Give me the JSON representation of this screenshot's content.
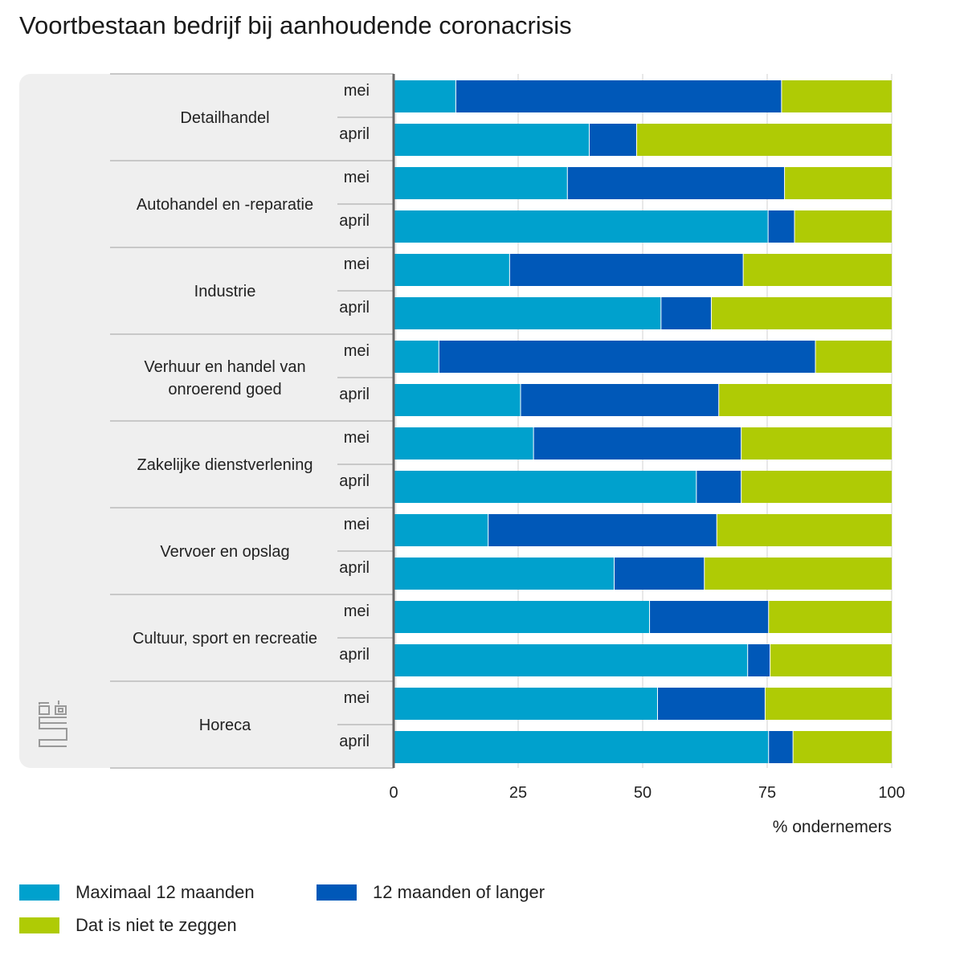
{
  "chart_data": {
    "type": "bar",
    "orientation": "horizontal",
    "stacked": true,
    "title": "Voortbestaan bedrijf bij aanhoudende coronacrisis",
    "xlabel": "% ondernemers",
    "ylabel": "",
    "xlim": [
      0,
      100
    ],
    "xticks": [
      "0",
      "25",
      "50",
      "75",
      "100"
    ],
    "grid": true,
    "legend_position": "bottom-left",
    "groups": [
      {
        "name": "Detailhandel",
        "rows": [
          {
            "label": "mei",
            "values": [
              12.4,
              65.4,
              22.2
            ]
          },
          {
            "label": "april",
            "values": [
              39.2,
              9.5,
              51.3
            ]
          }
        ]
      },
      {
        "name": "Autohandel en -reparatie",
        "rows": [
          {
            "label": "mei",
            "values": [
              34.8,
              43.6,
              21.6
            ]
          },
          {
            "label": "april",
            "values": [
              75.1,
              5.3,
              19.6
            ]
          }
        ]
      },
      {
        "name": "Industrie",
        "rows": [
          {
            "label": "mei",
            "values": [
              23.2,
              46.9,
              29.9
            ]
          },
          {
            "label": "april",
            "values": [
              53.6,
              10.1,
              36.3
            ]
          }
        ]
      },
      {
        "name": "Verhuur en handel van onroerend goed",
        "rows": [
          {
            "label": "mei",
            "values": [
              9.0,
              75.6,
              15.4
            ]
          },
          {
            "label": "april",
            "values": [
              25.4,
              39.8,
              34.8
            ]
          }
        ]
      },
      {
        "name": "Zakelijke dienstverlening",
        "rows": [
          {
            "label": "mei",
            "values": [
              28.0,
              41.7,
              30.3
            ]
          },
          {
            "label": "april",
            "values": [
              60.7,
              9.0,
              30.3
            ]
          }
        ]
      },
      {
        "name": "Vervoer en opslag",
        "rows": [
          {
            "label": "mei",
            "values": [
              18.9,
              45.9,
              35.2
            ]
          },
          {
            "label": "april",
            "values": [
              44.2,
              18.1,
              37.7
            ]
          }
        ]
      },
      {
        "name": "Cultuur, sport en recreatie",
        "rows": [
          {
            "label": "mei",
            "values": [
              51.3,
              23.9,
              24.8
            ]
          },
          {
            "label": "april",
            "values": [
              71.0,
              4.5,
              24.5
            ]
          }
        ]
      },
      {
        "name": "Horeca",
        "rows": [
          {
            "label": "mei",
            "values": [
              52.9,
              21.6,
              25.5
            ]
          },
          {
            "label": "april",
            "values": [
              75.2,
              4.9,
              19.9
            ]
          }
        ]
      }
    ],
    "series": [
      {
        "name": "Maximaal 12 maanden",
        "color": "#00a1cd"
      },
      {
        "name": "12 maanden of langer",
        "color": "#0058b8"
      },
      {
        "name": "Dat is niet te zeggen",
        "color": "#afcb05"
      }
    ]
  },
  "logo": {
    "icon": "cbs-logo-icon"
  }
}
